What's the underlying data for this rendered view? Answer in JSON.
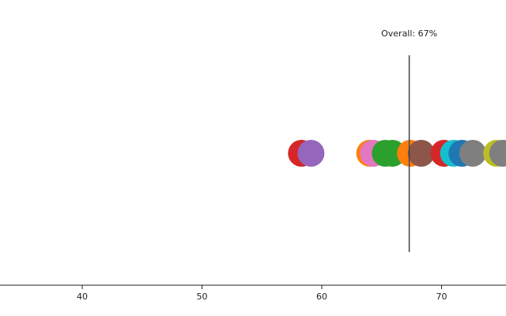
{
  "chart_data": {
    "type": "scatter",
    "title": "",
    "xlabel": "",
    "ylabel": "",
    "xlim": [
      33,
      75
    ],
    "xticks": [
      40,
      50,
      60,
      70
    ],
    "grid": false,
    "legend": "none",
    "reference_line": {
      "x": 67.3,
      "label": "Overall: 67%"
    },
    "points": [
      {
        "x": 58.3,
        "color": "#d62728"
      },
      {
        "x": 59.1,
        "color": "#9467bd"
      },
      {
        "x": 64.0,
        "color": "#ff7f0e"
      },
      {
        "x": 64.3,
        "color": "#e377c2"
      },
      {
        "x": 65.3,
        "color": "#2ca02c"
      },
      {
        "x": 65.9,
        "color": "#2ca02c"
      },
      {
        "x": 67.4,
        "color": "#ff7f0e"
      },
      {
        "x": 68.3,
        "color": "#8c564b"
      },
      {
        "x": 70.2,
        "color": "#d62728"
      },
      {
        "x": 71.0,
        "color": "#17becf"
      },
      {
        "x": 71.7,
        "color": "#1f77b4"
      },
      {
        "x": 72.6,
        "color": "#7f7f7f"
      },
      {
        "x": 74.6,
        "color": "#bcbd22"
      },
      {
        "x": 75.1,
        "color": "#7f7f7f"
      }
    ]
  }
}
